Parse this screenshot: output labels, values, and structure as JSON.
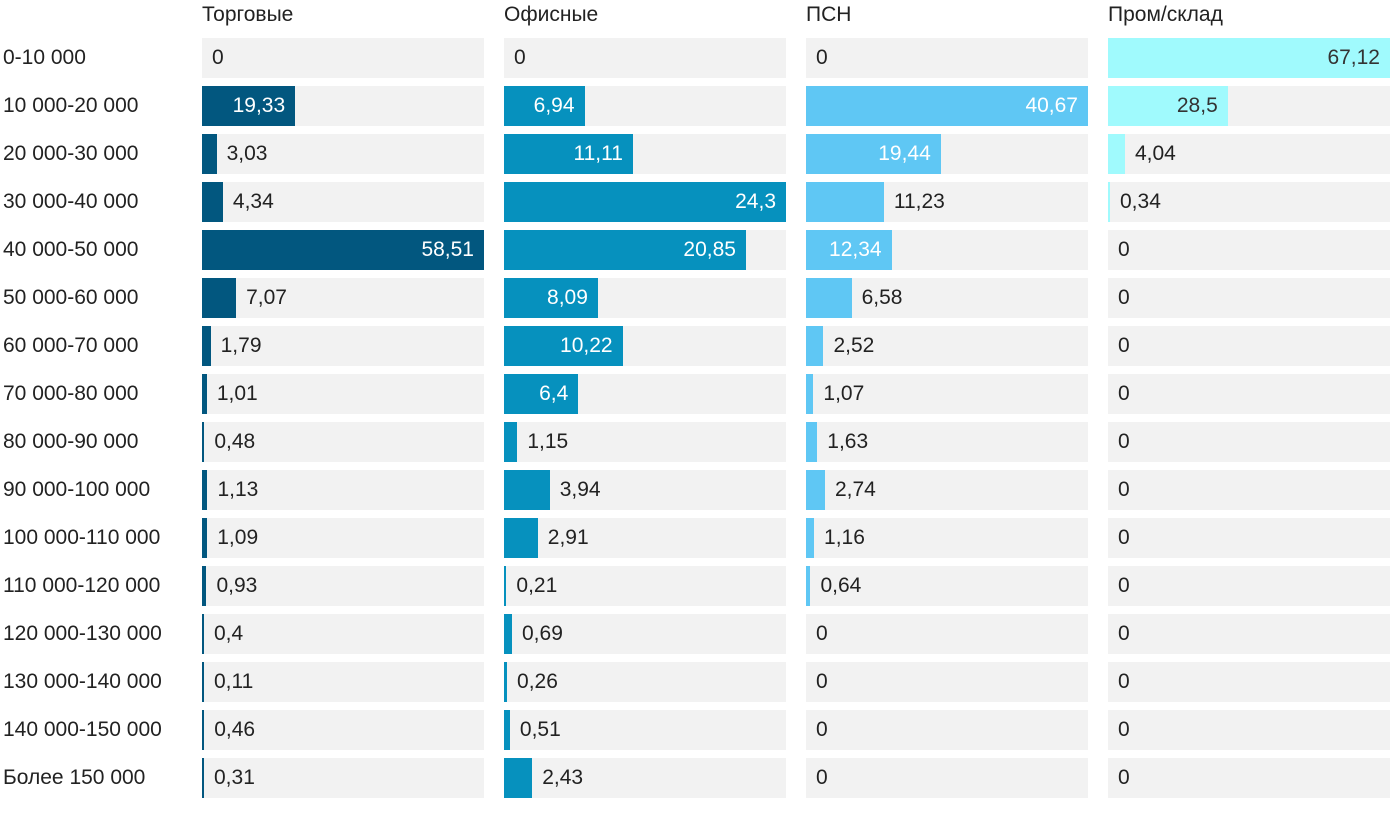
{
  "chart_data": {
    "type": "bar",
    "orientation": "horizontal",
    "layout": "small-multiples",
    "categories": [
      "0-10 000",
      "10 000-20 000",
      "20 000-30 000",
      "30 000-40 000",
      "40 000-50 000",
      "50 000-60 000",
      "60 000-70 000",
      "70 000-80 000",
      "80 000-90 000",
      "90 000-100 000",
      "100 000-110 000",
      "110 000-120 000",
      "120 000-130 000",
      "130 000-140 000",
      "140 000-150 000",
      "Более 150 000"
    ],
    "series": [
      {
        "name": "Торговые",
        "color": "#02577f",
        "max": 58.51,
        "values": [
          0,
          19.33,
          3.03,
          4.34,
          58.51,
          7.07,
          1.79,
          1.01,
          0.48,
          1.13,
          1.09,
          0.93,
          0.4,
          0.11,
          0.46,
          0.31
        ],
        "labels": [
          "0",
          "19,33",
          "3,03",
          "4,34",
          "58,51",
          "7,07",
          "1,79",
          "1,01",
          "0,48",
          "1,13",
          "1,09",
          "0,93",
          "0,4",
          "0,11",
          "0,46",
          "0,31"
        ]
      },
      {
        "name": "Офисные",
        "color": "#0691be",
        "max": 24.3,
        "values": [
          0,
          6.94,
          11.11,
          24.3,
          20.85,
          8.09,
          10.22,
          6.4,
          1.15,
          3.94,
          2.91,
          0.21,
          0.69,
          0.26,
          0.51,
          2.43
        ],
        "labels": [
          "0",
          "6,94",
          "11,11",
          "24,3",
          "20,85",
          "8,09",
          "10,22",
          "6,4",
          "1,15",
          "3,94",
          "2,91",
          "0,21",
          "0,69",
          "0,26",
          "0,51",
          "2,43"
        ]
      },
      {
        "name": "ПСН",
        "color": "#5fc7f4",
        "max": 40.67,
        "values": [
          0,
          40.67,
          19.44,
          11.23,
          12.34,
          6.58,
          2.52,
          1.07,
          1.63,
          2.74,
          1.16,
          0.64,
          0,
          0,
          0,
          0
        ],
        "labels": [
          "0",
          "40,67",
          "19,44",
          "11,23",
          "12,34",
          "6,58",
          "2,52",
          "1,07",
          "1,63",
          "2,74",
          "1,16",
          "0,64",
          "0",
          "0",
          "0",
          "0"
        ]
      },
      {
        "name": "Пром/склад",
        "color": "#a0fafd",
        "max": 67.12,
        "dark_label": true,
        "values": [
          67.12,
          28.5,
          4.04,
          0.34,
          0,
          0,
          0,
          0,
          0,
          0,
          0,
          0,
          0,
          0,
          0,
          0
        ],
        "labels": [
          "67,12",
          "28,5",
          "4,04",
          "0,34",
          "0",
          "0",
          "0",
          "0",
          "0",
          "0",
          "0",
          "0",
          "0",
          "0",
          "0",
          "0"
        ]
      }
    ]
  }
}
